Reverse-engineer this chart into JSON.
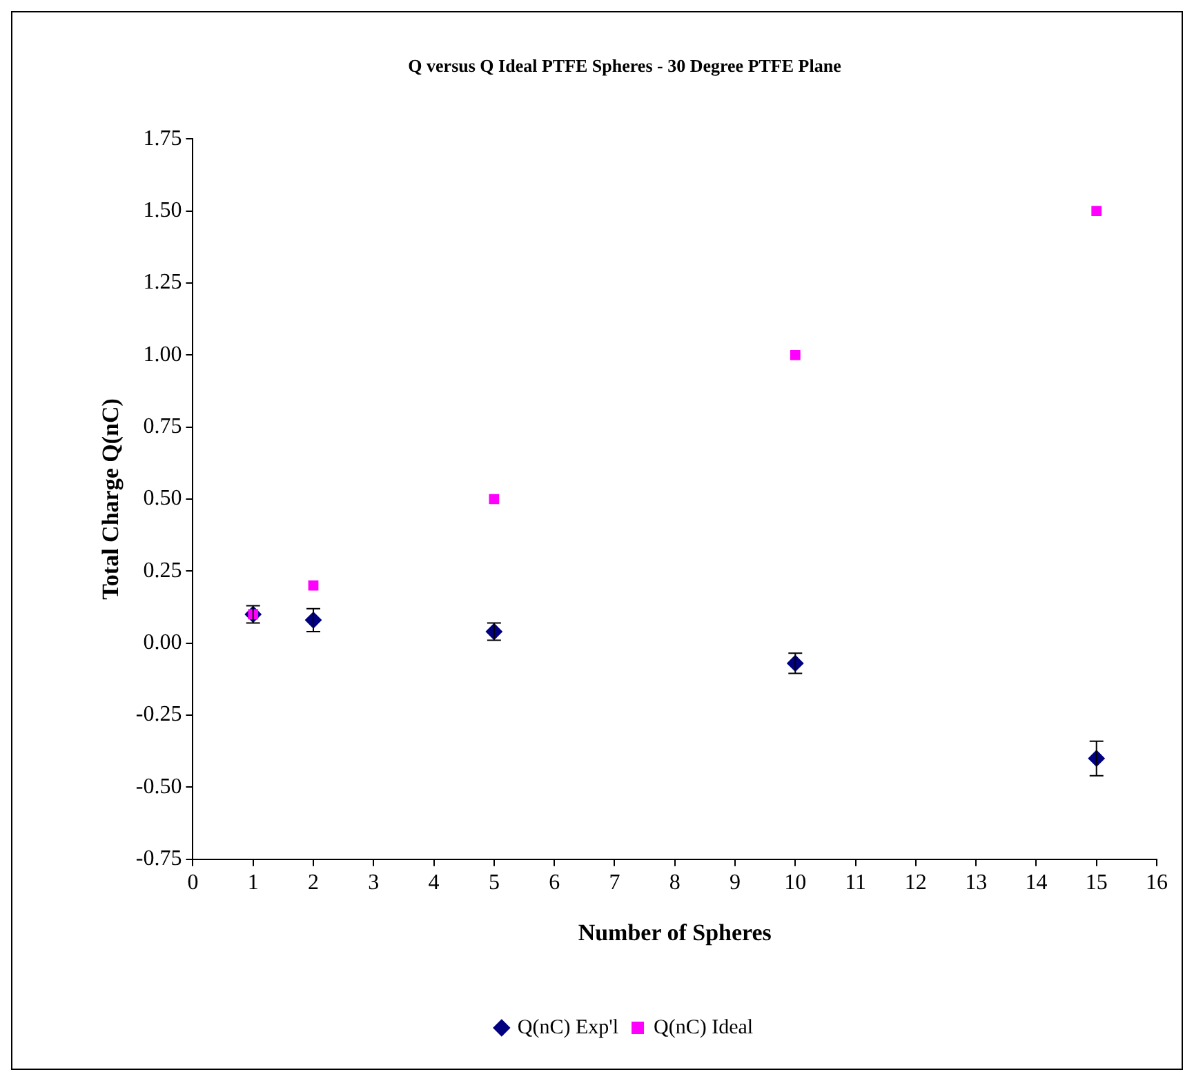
{
  "chart_data": {
    "type": "scatter",
    "title": "Q versus Q Ideal PTFE Spheres - 30 Degree PTFE Plane",
    "xlabel": "Number of Spheres",
    "ylabel": "Total Charge Q(nC)",
    "series": [
      {
        "name": "Q(nC) Exp'l",
        "color": "#000080",
        "marker": "diamond",
        "x": [
          1,
          2,
          5,
          10,
          15
        ],
        "values": [
          0.1,
          0.08,
          0.04,
          -0.07,
          -0.4
        ],
        "errors": [
          0.03,
          0.04,
          0.03,
          0.035,
          0.06
        ]
      },
      {
        "name": "Q(nC) Ideal",
        "color": "#ff00ff",
        "marker": "square",
        "x": [
          1,
          2,
          5,
          10,
          15
        ],
        "values": [
          0.1,
          0.2,
          0.5,
          1.0,
          1.5
        ]
      }
    ],
    "xlim": [
      0,
      16
    ],
    "xticks": [
      0,
      1,
      2,
      3,
      4,
      5,
      6,
      7,
      8,
      9,
      10,
      11,
      12,
      13,
      14,
      15,
      16
    ],
    "ylim": [
      -0.75,
      1.75
    ],
    "yticks": [
      {
        "value": -0.75,
        "label": "-0.75"
      },
      {
        "value": -0.5,
        "label": "-0.50"
      },
      {
        "value": -0.25,
        "label": "-0.25"
      },
      {
        "value": 0,
        "label": "0.00"
      },
      {
        "value": 0.25,
        "label": "0.25"
      },
      {
        "value": 0.5,
        "label": "0.50"
      },
      {
        "value": 0.75,
        "label": "0.75"
      },
      {
        "value": 1,
        "label": "1.00"
      },
      {
        "value": 1.25,
        "label": "1.25"
      },
      {
        "value": 1.5,
        "label": "1.50"
      },
      {
        "value": 1.75,
        "label": "1.75"
      }
    ],
    "grid": false,
    "legend": "bottom"
  }
}
